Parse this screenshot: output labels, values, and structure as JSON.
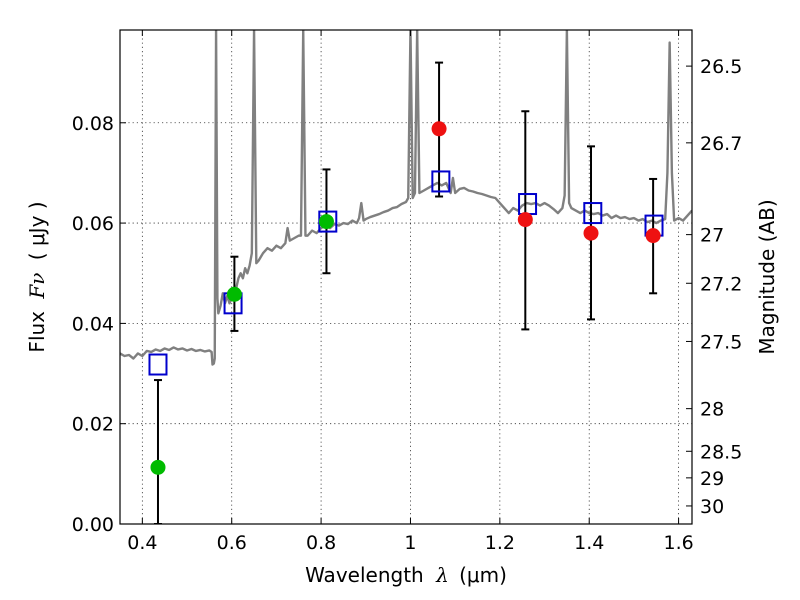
{
  "chart_data": {
    "type": "scatter",
    "xlabel_prefix": "Wavelength",
    "xlabel_symbol": "λ",
    "xlabel_unit": "(μm)",
    "ylabel_prefix": "Flux",
    "ylabel_symbol": "Fν",
    "ylabel_unit": "( μJy )",
    "y2label": "Magnitude (AB)",
    "xlim": [
      0.35,
      1.63
    ],
    "ylim": [
      0.0,
      0.0985
    ],
    "grid": true,
    "x_ticks": [
      0.4,
      0.6,
      0.8,
      1.0,
      1.2,
      1.4,
      1.6
    ],
    "x_tick_labels": [
      "0.4",
      "0.6",
      "0.8",
      "1",
      "1.2",
      "1.4",
      "1.6"
    ],
    "y_ticks": [
      0.0,
      0.02,
      0.04,
      0.06,
      0.08
    ],
    "y_tick_labels": [
      "0.00",
      "0.02",
      "0.04",
      "0.06",
      "0.08"
    ],
    "y2_ticks": [
      {
        "label": "26.5",
        "flux": 0.0913
      },
      {
        "label": "26.7",
        "flux": 0.076
      },
      {
        "label": "27",
        "flux": 0.0577
      },
      {
        "label": "27.2",
        "flux": 0.048
      },
      {
        "label": "27.5",
        "flux": 0.0364
      },
      {
        "label": "28",
        "flux": 0.023
      },
      {
        "label": "28.5",
        "flux": 0.0145
      },
      {
        "label": "29",
        "flux": 0.0092
      },
      {
        "label": "30",
        "flux": 0.0036
      }
    ],
    "model_spectrum": {
      "name": "",
      "color": "#808080",
      "points": [
        [
          0.35,
          0.034
        ],
        [
          0.36,
          0.0335
        ],
        [
          0.37,
          0.0337
        ],
        [
          0.38,
          0.033
        ],
        [
          0.39,
          0.034
        ],
        [
          0.4,
          0.0335
        ],
        [
          0.41,
          0.0345
        ],
        [
          0.42,
          0.0343
        ],
        [
          0.43,
          0.0348
        ],
        [
          0.44,
          0.0345
        ],
        [
          0.45,
          0.035
        ],
        [
          0.46,
          0.0347
        ],
        [
          0.47,
          0.0352
        ],
        [
          0.48,
          0.0348
        ],
        [
          0.49,
          0.035
        ],
        [
          0.5,
          0.0346
        ],
        [
          0.51,
          0.0349
        ],
        [
          0.52,
          0.0345
        ],
        [
          0.53,
          0.0347
        ],
        [
          0.54,
          0.0344
        ],
        [
          0.55,
          0.0346
        ],
        [
          0.555,
          0.0343
        ],
        [
          0.557,
          0.0318
        ],
        [
          0.56,
          0.032
        ],
        [
          0.562,
          0.033
        ],
        [
          0.565,
          0.0985
        ],
        [
          0.568,
          0.045
        ],
        [
          0.57,
          0.042
        ],
        [
          0.575,
          0.0435
        ],
        [
          0.58,
          0.046
        ],
        [
          0.585,
          0.044
        ],
        [
          0.59,
          0.0455
        ],
        [
          0.595,
          0.044
        ],
        [
          0.6,
          0.045
        ],
        [
          0.605,
          0.046
        ],
        [
          0.61,
          0.047
        ],
        [
          0.615,
          0.049
        ],
        [
          0.62,
          0.05
        ],
        [
          0.625,
          0.049
        ],
        [
          0.63,
          0.051
        ],
        [
          0.635,
          0.05
        ],
        [
          0.64,
          0.0515
        ],
        [
          0.645,
          0.054
        ],
        [
          0.65,
          0.0985
        ],
        [
          0.655,
          0.052
        ],
        [
          0.66,
          0.0525
        ],
        [
          0.67,
          0.054
        ],
        [
          0.68,
          0.055
        ],
        [
          0.69,
          0.0545
        ],
        [
          0.7,
          0.0555
        ],
        [
          0.71,
          0.055
        ],
        [
          0.72,
          0.056
        ],
        [
          0.725,
          0.059
        ],
        [
          0.73,
          0.0565
        ],
        [
          0.74,
          0.057
        ],
        [
          0.75,
          0.0575
        ],
        [
          0.755,
          0.0575
        ],
        [
          0.76,
          0.0985
        ],
        [
          0.765,
          0.0575
        ],
        [
          0.77,
          0.0575
        ],
        [
          0.78,
          0.0585
        ],
        [
          0.79,
          0.058
        ],
        [
          0.8,
          0.059
        ],
        [
          0.81,
          0.0595
        ],
        [
          0.82,
          0.059
        ],
        [
          0.83,
          0.0598
        ],
        [
          0.84,
          0.0595
        ],
        [
          0.85,
          0.06
        ],
        [
          0.86,
          0.0598
        ],
        [
          0.87,
          0.0605
        ],
        [
          0.88,
          0.06
        ],
        [
          0.885,
          0.061
        ],
        [
          0.89,
          0.064
        ],
        [
          0.895,
          0.0605
        ],
        [
          0.9,
          0.0608
        ],
        [
          0.91,
          0.0612
        ],
        [
          0.92,
          0.0615
        ],
        [
          0.93,
          0.0618
        ],
        [
          0.94,
          0.0622
        ],
        [
          0.95,
          0.0625
        ],
        [
          0.96,
          0.063
        ],
        [
          0.97,
          0.0632
        ],
        [
          0.98,
          0.0638
        ],
        [
          0.99,
          0.0642
        ],
        [
          0.995,
          0.065
        ],
        [
          1.0,
          0.0985
        ],
        [
          1.005,
          0.065
        ],
        [
          1.01,
          0.066
        ],
        [
          1.015,
          0.0985
        ],
        [
          1.02,
          0.066
        ],
        [
          1.03,
          0.0665
        ],
        [
          1.04,
          0.067
        ],
        [
          1.05,
          0.0675
        ],
        [
          1.06,
          0.068
        ],
        [
          1.07,
          0.0675
        ],
        [
          1.08,
          0.068
        ],
        [
          1.09,
          0.066
        ],
        [
          1.095,
          0.069
        ],
        [
          1.1,
          0.066
        ],
        [
          1.11,
          0.0668
        ],
        [
          1.12,
          0.067
        ],
        [
          1.13,
          0.0665
        ],
        [
          1.14,
          0.0663
        ],
        [
          1.15,
          0.066
        ],
        [
          1.16,
          0.0658
        ],
        [
          1.17,
          0.0655
        ],
        [
          1.18,
          0.0652
        ],
        [
          1.19,
          0.065
        ],
        [
          1.2,
          0.064
        ],
        [
          1.21,
          0.063
        ],
        [
          1.22,
          0.062
        ],
        [
          1.23,
          0.063
        ],
        [
          1.24,
          0.0625
        ],
        [
          1.25,
          0.0635
        ],
        [
          1.26,
          0.064
        ],
        [
          1.27,
          0.0638
        ],
        [
          1.28,
          0.064
        ],
        [
          1.29,
          0.0635
        ],
        [
          1.3,
          0.064
        ],
        [
          1.31,
          0.0635
        ],
        [
          1.32,
          0.0628
        ],
        [
          1.33,
          0.062
        ],
        [
          1.34,
          0.063
        ],
        [
          1.345,
          0.0655
        ],
        [
          1.35,
          0.0985
        ],
        [
          1.355,
          0.064
        ],
        [
          1.36,
          0.063
        ],
        [
          1.37,
          0.0625
        ],
        [
          1.38,
          0.062
        ],
        [
          1.39,
          0.0625
        ],
        [
          1.4,
          0.062
        ],
        [
          1.41,
          0.0618
        ],
        [
          1.42,
          0.062
        ],
        [
          1.43,
          0.0615
        ],
        [
          1.44,
          0.0618
        ],
        [
          1.45,
          0.061
        ],
        [
          1.46,
          0.0615
        ],
        [
          1.47,
          0.061
        ],
        [
          1.48,
          0.0612
        ],
        [
          1.49,
          0.0608
        ],
        [
          1.5,
          0.061
        ],
        [
          1.51,
          0.0605
        ],
        [
          1.52,
          0.0608
        ],
        [
          1.53,
          0.0602
        ],
        [
          1.54,
          0.0605
        ],
        [
          1.55,
          0.06
        ],
        [
          1.56,
          0.0605
        ],
        [
          1.57,
          0.0608
        ],
        [
          1.575,
          0.07
        ],
        [
          1.58,
          0.096
        ],
        [
          1.585,
          0.07
        ],
        [
          1.59,
          0.0605
        ],
        [
          1.6,
          0.061
        ],
        [
          1.61,
          0.0605
        ],
        [
          1.62,
          0.0615
        ],
        [
          1.63,
          0.0625
        ]
      ]
    },
    "model_photometry": {
      "name": "",
      "color": "#0000cc",
      "points": [
        [
          0.435,
          0.0318
        ],
        [
          0.603,
          0.044
        ],
        [
          0.815,
          0.0603
        ],
        [
          1.068,
          0.0683
        ],
        [
          1.262,
          0.0638
        ],
        [
          1.408,
          0.062
        ],
        [
          1.545,
          0.0595
        ]
      ]
    },
    "observed_detections": {
      "name": "",
      "colors": {
        "green": "#00bb00",
        "red": "#ee1111"
      },
      "points": [
        {
          "x": 0.435,
          "y": 0.0113,
          "err_low": 0.0,
          "err_high": 0.0287,
          "color": "green"
        },
        {
          "x": 0.606,
          "y": 0.0458,
          "err_low": 0.0385,
          "err_high": 0.0533,
          "color": "green"
        },
        {
          "x": 0.812,
          "y": 0.0603,
          "err_low": 0.05,
          "err_high": 0.0707,
          "color": "green"
        },
        {
          "x": 1.064,
          "y": 0.0788,
          "err_low": 0.0653,
          "err_high": 0.092,
          "color": "red"
        },
        {
          "x": 1.257,
          "y": 0.0607,
          "err_low": 0.0388,
          "err_high": 0.0823,
          "color": "red"
        },
        {
          "x": 1.404,
          "y": 0.058,
          "err_low": 0.0408,
          "err_high": 0.0753,
          "color": "red"
        },
        {
          "x": 1.543,
          "y": 0.0575,
          "err_low": 0.046,
          "err_high": 0.0688,
          "color": "red"
        }
      ]
    }
  }
}
